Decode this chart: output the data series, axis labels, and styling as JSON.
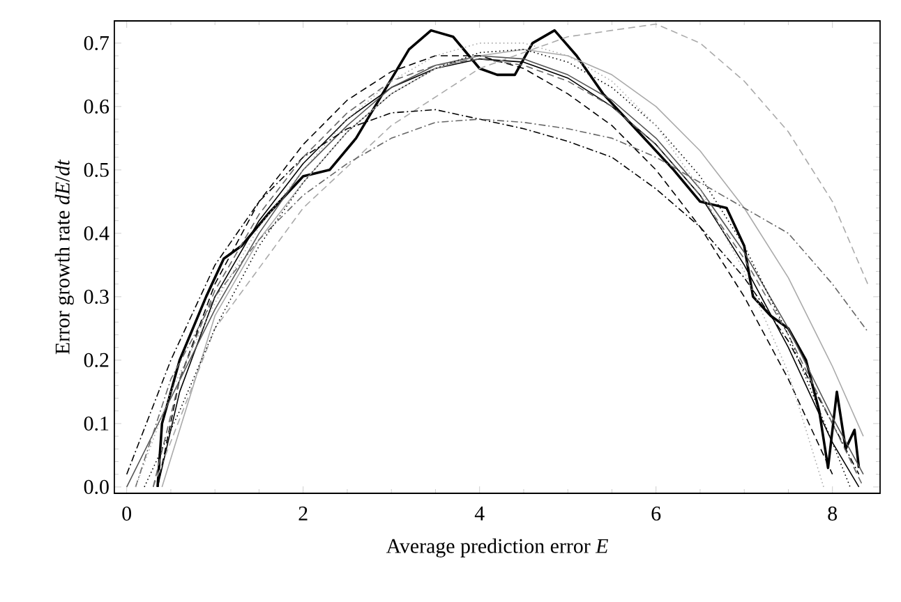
{
  "chart_data": {
    "type": "line",
    "xlabel": "Average prediction error *E*",
    "ylabel": "Error growth rate *dE*/*dt*",
    "xlim": [
      -0.14,
      8.54
    ],
    "ylim": [
      -0.01,
      0.735
    ],
    "xticks": [
      0,
      2,
      4,
      6,
      8
    ],
    "yticks": [
      {
        "value": 0,
        "label": "0.0"
      },
      {
        "value": 0.1,
        "label": "0.1"
      },
      {
        "value": 0.2,
        "label": "0.2"
      },
      {
        "value": 0.3,
        "label": "0.3"
      },
      {
        "value": 0.4,
        "label": "0.4"
      },
      {
        "value": 0.5,
        "label": "0.5"
      },
      {
        "value": 0.6,
        "label": "0.6"
      },
      {
        "value": 0.7,
        "label": "0.7"
      }
    ],
    "marker": "none",
    "series": [
      {
        "color": "#000000",
        "line_style": "solid",
        "x": [
          0.35,
          0.4,
          0.6,
          0.9,
          1.1,
          1.3,
          1.6,
          2.0,
          2.3,
          2.6,
          2.9,
          3.2,
          3.45,
          3.7,
          4.0,
          4.2,
          4.4,
          4.6,
          4.85,
          5.1,
          5.4,
          5.8,
          6.2,
          6.5,
          6.8,
          7.0,
          7.1,
          7.3,
          7.5,
          7.7,
          7.85,
          7.95,
          8.05,
          8.15,
          8.25,
          8.3
        ],
        "values": [
          0,
          0.1,
          0.2,
          0.3,
          0.36,
          0.38,
          0.43,
          0.49,
          0.5,
          0.55,
          0.62,
          0.69,
          0.72,
          0.71,
          0.66,
          0.65,
          0.65,
          0.7,
          0.72,
          0.68,
          0.62,
          0.56,
          0.5,
          0.45,
          0.44,
          0.38,
          0.3,
          0.27,
          0.25,
          0.2,
          0.12,
          0.03,
          0.15,
          0.06,
          0.09,
          0.03
        ]
      },
      {
        "color": "#000000",
        "line_style": "solid",
        "x": [
          0.35,
          0.6,
          1,
          1.5,
          2,
          2.5,
          3,
          3.5,
          4,
          4.5,
          5,
          5.5,
          6,
          6.5,
          7,
          7.5,
          8,
          8.3
        ],
        "values": [
          0,
          0.15,
          0.3,
          0.42,
          0.51,
          0.58,
          0.63,
          0.66,
          0.675,
          0.67,
          0.645,
          0.6,
          0.54,
          0.46,
          0.35,
          0.22,
          0.07,
          0
        ]
      },
      {
        "color": "#555555",
        "line_style": "solid",
        "x": [
          0,
          0.5,
          1,
          1.5,
          2,
          2.5,
          3,
          3.5,
          4,
          4.5,
          5,
          5.5,
          6,
          6.5,
          7,
          7.5,
          8,
          8.35
        ],
        "values": [
          0,
          0.14,
          0.28,
          0.4,
          0.5,
          0.57,
          0.63,
          0.665,
          0.68,
          0.675,
          0.65,
          0.61,
          0.55,
          0.47,
          0.37,
          0.25,
          0.11,
          0.02
        ]
      },
      {
        "color": "#aaaaaa",
        "line_style": "solid",
        "x": [
          0.4,
          1,
          1.5,
          2,
          2.5,
          3,
          3.5,
          4,
          4.5,
          5,
          5.5,
          6,
          6.5,
          7,
          7.5,
          8,
          8.35
        ],
        "values": [
          0,
          0.27,
          0.39,
          0.48,
          0.56,
          0.62,
          0.66,
          0.68,
          0.69,
          0.68,
          0.65,
          0.6,
          0.53,
          0.44,
          0.33,
          0.19,
          0.08
        ]
      },
      {
        "color": "#aaaaaa",
        "line_style": "dashed",
        "x": [
          0.3,
          1,
          2,
          3,
          4,
          5,
          6,
          6.5,
          7,
          7.5,
          8,
          8.4
        ],
        "values": [
          0,
          0.25,
          0.44,
          0.57,
          0.66,
          0.71,
          0.73,
          0.7,
          0.64,
          0.56,
          0.45,
          0.32
        ]
      },
      {
        "color": "#000000",
        "line_style": "dashdot",
        "x": [
          0,
          0.5,
          1,
          1.5,
          2,
          2.5,
          3,
          3.5,
          4,
          4.5,
          5,
          5.5,
          6,
          6.5,
          7,
          7.5,
          8,
          8.3
        ],
        "values": [
          0.02,
          0.2,
          0.35,
          0.45,
          0.52,
          0.565,
          0.59,
          0.595,
          0.58,
          0.565,
          0.545,
          0.52,
          0.47,
          0.41,
          0.33,
          0.23,
          0.1,
          0.02
        ]
      },
      {
        "color": "#666666",
        "line_style": "dashdot",
        "x": [
          0.1,
          0.5,
          1,
          1.5,
          2,
          2.5,
          3,
          3.5,
          4,
          4.5,
          5,
          5.5,
          6,
          6.5,
          7,
          7.5,
          8,
          8.4
        ],
        "values": [
          0,
          0.17,
          0.3,
          0.39,
          0.46,
          0.51,
          0.55,
          0.575,
          0.58,
          0.575,
          0.565,
          0.55,
          0.52,
          0.48,
          0.44,
          0.4,
          0.32,
          0.245
        ]
      },
      {
        "color": "#000000",
        "line_style": "dashed",
        "x": [
          0.35,
          0.6,
          1,
          1.5,
          2,
          2.5,
          3,
          3.5,
          4,
          4.5,
          5,
          5.5,
          6,
          6.5,
          7,
          7.5,
          8
        ],
        "values": [
          0,
          0.17,
          0.32,
          0.45,
          0.54,
          0.61,
          0.655,
          0.68,
          0.68,
          0.66,
          0.62,
          0.57,
          0.5,
          0.41,
          0.3,
          0.17,
          0.02
        ]
      },
      {
        "color": "#666666",
        "line_style": "dashed",
        "x": [
          0.3,
          0.6,
          1,
          1.5,
          2,
          2.5,
          3,
          3.5,
          4,
          4.5,
          5,
          5.5,
          6,
          6.5,
          7,
          7.5,
          8,
          8.35
        ],
        "values": [
          0,
          0.17,
          0.31,
          0.43,
          0.52,
          0.59,
          0.64,
          0.665,
          0.675,
          0.665,
          0.64,
          0.6,
          0.54,
          0.46,
          0.36,
          0.24,
          0.1,
          0
        ]
      },
      {
        "color": "#000000",
        "line_style": "dotted",
        "x": [
          0.2,
          0.6,
          1,
          1.5,
          2,
          2.5,
          3,
          3.5,
          4,
          4.5,
          5,
          5.5,
          6,
          6.5,
          7,
          7.5,
          8,
          8.2
        ],
        "values": [
          0,
          0.12,
          0.25,
          0.38,
          0.48,
          0.56,
          0.62,
          0.66,
          0.685,
          0.69,
          0.67,
          0.63,
          0.57,
          0.49,
          0.38,
          0.24,
          0.07,
          0
        ]
      },
      {
        "color": "#aaaaaa",
        "line_style": "dotted",
        "x": [
          0.1,
          0.5,
          1,
          1.5,
          2,
          2.5,
          3,
          3.5,
          4,
          4.5,
          5,
          5.5,
          6,
          6.5,
          7,
          7.5,
          7.9
        ],
        "values": [
          0,
          0.15,
          0.29,
          0.41,
          0.5,
          0.58,
          0.64,
          0.68,
          0.7,
          0.7,
          0.68,
          0.64,
          0.57,
          0.47,
          0.34,
          0.18,
          0
        ]
      }
    ]
  }
}
